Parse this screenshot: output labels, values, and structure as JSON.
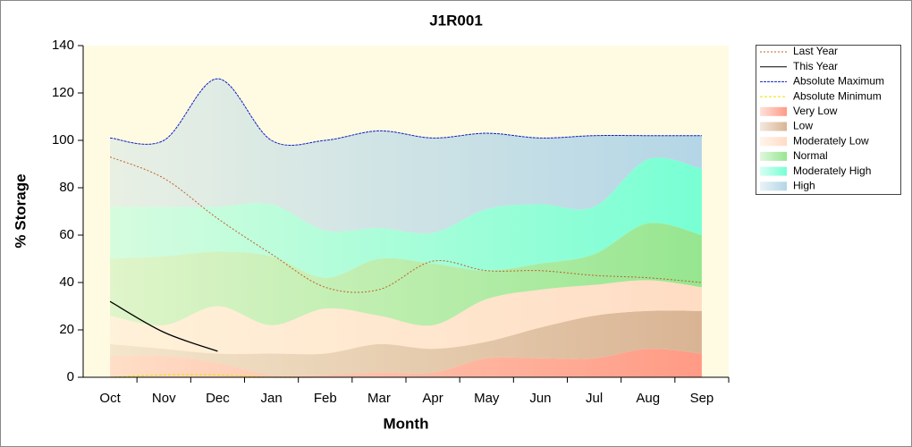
{
  "chart_data": {
    "type": "stacked-area-line",
    "title": "J1R001",
    "x_label": "Month",
    "y_label": "% Storage",
    "categories": [
      "Oct",
      "Nov",
      "Dec",
      "Jan",
      "Feb",
      "Mar",
      "Apr",
      "May",
      "Jun",
      "Jul",
      "Aug",
      "Sep"
    ],
    "ylim": [
      0,
      140
    ],
    "yticks": [
      0,
      20,
      40,
      60,
      80,
      100,
      120,
      140
    ],
    "series": [
      {
        "name": "Last Year",
        "kind": "line",
        "dash": "2,2",
        "color": "#c0602a",
        "values": [
          93,
          84,
          67,
          52,
          38,
          37,
          49,
          45,
          45,
          43,
          42,
          40
        ]
      },
      {
        "name": "This Year",
        "kind": "line",
        "dash": "none",
        "color": "#000000",
        "values": [
          32,
          19,
          11,
          null,
          null,
          null,
          null,
          null,
          null,
          null,
          null,
          null
        ]
      },
      {
        "name": "Absolute Maximum",
        "kind": "line",
        "dash": "3,1",
        "color": "#1020c0",
        "values": [
          101,
          100,
          126,
          100,
          100,
          104,
          101,
          103,
          101,
          102,
          102,
          102
        ]
      },
      {
        "name": "Absolute Minimum",
        "kind": "line",
        "dash": "3,2",
        "color": "#e8e000",
        "values": [
          0,
          1,
          1,
          0,
          0,
          0,
          0,
          0,
          0,
          0,
          0,
          0
        ]
      },
      {
        "name": "Very Low",
        "kind": "area",
        "color": "#ff9a85",
        "values": [
          9,
          9,
          6,
          1,
          1,
          2,
          2,
          8,
          8,
          8,
          12,
          10
        ]
      },
      {
        "name": "Low",
        "kind": "area",
        "color": "#d9b494",
        "values": [
          5,
          3,
          4,
          9,
          9,
          12,
          10,
          7,
          13,
          18,
          16,
          18
        ]
      },
      {
        "name": "Moderately Low",
        "kind": "area",
        "color": "#ffdcc4",
        "values": [
          12,
          10,
          20,
          12,
          19,
          12,
          10,
          18,
          16,
          13,
          13,
          10
        ]
      },
      {
        "name": "Normal",
        "kind": "area",
        "color": "#96e690",
        "values": [
          24,
          29,
          23,
          29,
          13,
          24,
          26,
          12,
          11,
          13,
          24,
          22
        ]
      },
      {
        "name": "Moderately High",
        "kind": "area",
        "color": "#78ffd4",
        "values": [
          22,
          21,
          19,
          22,
          20,
          13,
          13,
          26,
          25,
          20,
          27,
          28
        ]
      },
      {
        "name": "High",
        "kind": "area",
        "color": "#b4d6e6",
        "values": [
          29,
          28,
          54,
          27,
          38,
          41,
          40,
          32,
          28,
          30,
          10,
          14
        ]
      }
    ]
  }
}
